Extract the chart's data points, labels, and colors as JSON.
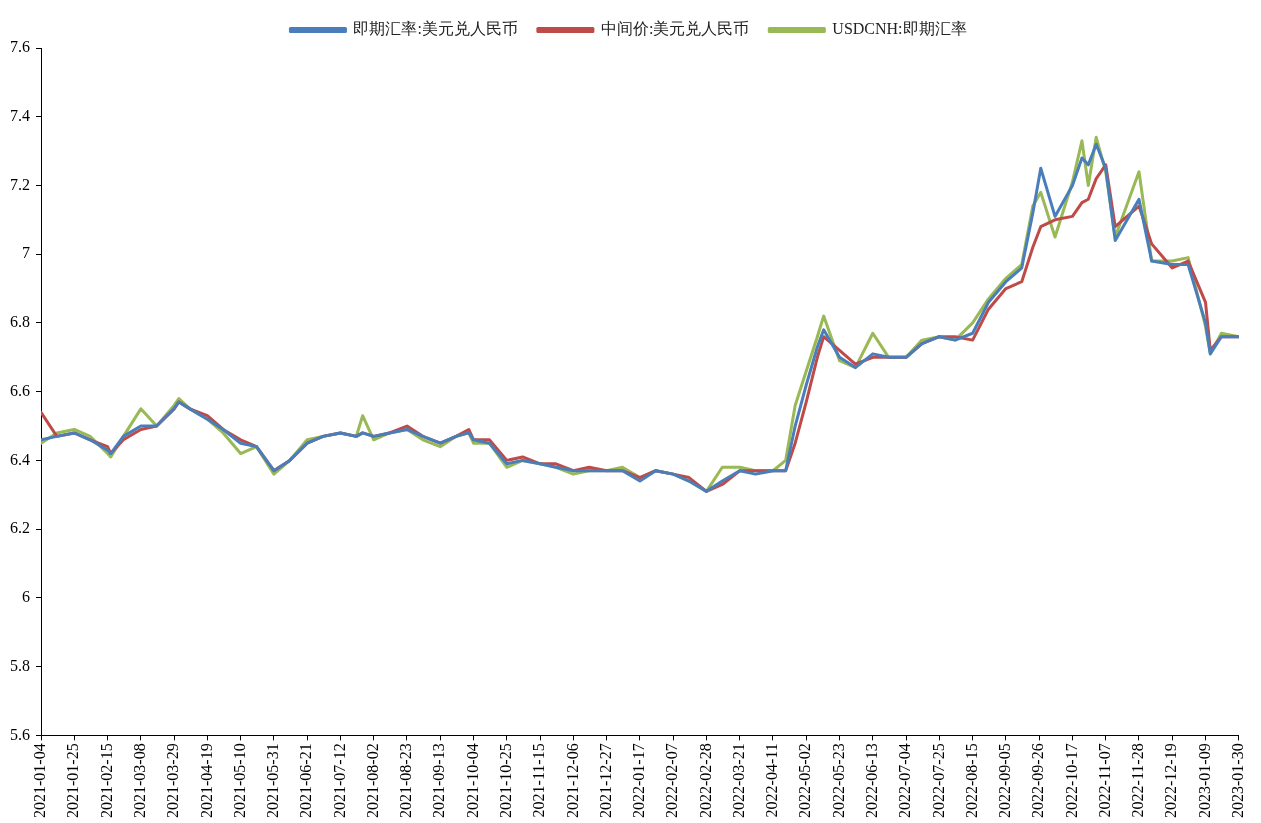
{
  "chart_data": {
    "type": "line",
    "x": [
      "2021-01-04",
      "2021-01-14",
      "2021-01-25",
      "2021-02-04",
      "2021-02-15",
      "2021-02-17",
      "2021-02-25",
      "2021-03-08",
      "2021-03-18",
      "2021-03-29",
      "2021-04-01",
      "2021-04-08",
      "2021-04-19",
      "2021-04-29",
      "2021-05-10",
      "2021-05-20",
      "2021-05-31",
      "2021-06-10",
      "2021-06-21",
      "2021-07-01",
      "2021-07-12",
      "2021-07-22",
      "2021-07-26",
      "2021-08-02",
      "2021-08-12",
      "2021-08-23",
      "2021-09-02",
      "2021-09-13",
      "2021-09-23",
      "2021-10-01",
      "2021-10-04",
      "2021-10-14",
      "2021-10-25",
      "2021-11-04",
      "2021-11-15",
      "2021-11-25",
      "2021-12-06",
      "2021-12-16",
      "2021-12-27",
      "2022-01-06",
      "2022-01-17",
      "2022-01-27",
      "2022-02-07",
      "2022-02-17",
      "2022-02-28",
      "2022-03-10",
      "2022-03-21",
      "2022-03-31",
      "2022-04-11",
      "2022-04-19",
      "2022-04-25",
      "2022-05-02",
      "2022-05-09",
      "2022-05-13",
      "2022-05-23",
      "2022-06-02",
      "2022-06-13",
      "2022-06-23",
      "2022-07-04",
      "2022-07-14",
      "2022-07-25",
      "2022-08-04",
      "2022-08-15",
      "2022-08-25",
      "2022-09-05",
      "2022-09-15",
      "2022-09-22",
      "2022-09-27",
      "2022-10-06",
      "2022-10-17",
      "2022-10-23",
      "2022-10-27",
      "2022-11-01",
      "2022-11-07",
      "2022-11-13",
      "2022-11-28",
      "2022-12-06",
      "2022-12-19",
      "2022-12-29",
      "2023-01-09",
      "2023-01-12",
      "2023-01-19",
      "2023-01-30"
    ],
    "series": [
      {
        "name": "即期汇率:美元兑人民币",
        "color": "#4a7ebb",
        "values": [
          6.46,
          6.47,
          6.48,
          6.46,
          6.43,
          6.42,
          6.47,
          6.5,
          6.5,
          6.55,
          6.57,
          6.55,
          6.52,
          6.49,
          6.45,
          6.44,
          6.37,
          6.4,
          6.45,
          6.47,
          6.48,
          6.47,
          6.48,
          6.47,
          6.48,
          6.49,
          6.47,
          6.45,
          6.47,
          6.48,
          6.46,
          6.45,
          6.39,
          6.4,
          6.39,
          6.38,
          6.37,
          6.37,
          6.37,
          6.37,
          6.34,
          6.37,
          6.36,
          6.34,
          6.31,
          6.34,
          6.37,
          6.36,
          6.37,
          6.37,
          6.5,
          6.62,
          6.73,
          6.78,
          6.7,
          6.67,
          6.71,
          6.7,
          6.7,
          6.74,
          6.76,
          6.75,
          6.77,
          6.86,
          6.92,
          6.96,
          7.12,
          7.25,
          7.11,
          7.2,
          7.28,
          7.26,
          7.32,
          7.25,
          7.04,
          7.16,
          6.98,
          6.97,
          6.97,
          6.8,
          6.71,
          6.76,
          6.76
        ]
      },
      {
        "name": "中间价:美元兑人民币",
        "color": "#be4b48",
        "values": [
          6.54,
          6.47,
          6.48,
          6.46,
          6.44,
          6.42,
          6.46,
          6.49,
          6.5,
          6.55,
          6.57,
          6.55,
          6.53,
          6.49,
          6.46,
          6.44,
          6.37,
          6.4,
          6.45,
          6.47,
          6.48,
          6.47,
          6.48,
          6.47,
          6.48,
          6.5,
          6.47,
          6.45,
          6.47,
          6.49,
          6.46,
          6.46,
          6.4,
          6.41,
          6.39,
          6.39,
          6.37,
          6.38,
          6.37,
          6.37,
          6.35,
          6.37,
          6.36,
          6.35,
          6.31,
          6.33,
          6.37,
          6.37,
          6.37,
          6.37,
          6.45,
          6.57,
          6.7,
          6.76,
          6.72,
          6.68,
          6.7,
          6.7,
          6.7,
          6.74,
          6.76,
          6.76,
          6.75,
          6.84,
          6.9,
          6.92,
          7.02,
          7.08,
          7.1,
          7.11,
          7.15,
          7.16,
          7.22,
          7.26,
          7.08,
          7.14,
          7.03,
          6.96,
          6.98,
          6.86,
          6.72,
          6.76,
          6.76
        ]
      },
      {
        "name": "USDCNH:即期汇率",
        "color": "#98b954",
        "values": [
          6.45,
          6.48,
          6.49,
          6.47,
          6.42,
          6.41,
          6.47,
          6.55,
          6.5,
          6.56,
          6.58,
          6.55,
          6.52,
          6.48,
          6.42,
          6.44,
          6.36,
          6.4,
          6.46,
          6.47,
          6.48,
          6.47,
          6.53,
          6.46,
          6.48,
          6.49,
          6.46,
          6.44,
          6.47,
          6.48,
          6.45,
          6.45,
          6.38,
          6.4,
          6.39,
          6.38,
          6.36,
          6.37,
          6.37,
          6.38,
          6.35,
          6.37,
          6.36,
          6.34,
          6.31,
          6.38,
          6.38,
          6.37,
          6.37,
          6.4,
          6.56,
          6.66,
          6.76,
          6.82,
          6.69,
          6.67,
          6.77,
          6.7,
          6.7,
          6.75,
          6.76,
          6.75,
          6.8,
          6.87,
          6.93,
          6.97,
          7.14,
          7.18,
          7.05,
          7.21,
          7.33,
          7.2,
          7.34,
          7.24,
          7.05,
          7.24,
          6.98,
          6.98,
          6.99,
          6.79,
          6.71,
          6.77,
          6.76
        ]
      }
    ],
    "xlim": [
      "2021-01-04",
      "2023-01-30"
    ],
    "xticks": [
      "2021-01-04",
      "2021-01-25",
      "2021-02-15",
      "2021-03-08",
      "2021-03-29",
      "2021-04-19",
      "2021-05-10",
      "2021-05-31",
      "2021-06-21",
      "2021-07-12",
      "2021-08-02",
      "2021-08-23",
      "2021-09-13",
      "2021-10-04",
      "2021-10-25",
      "2021-11-15",
      "2021-12-06",
      "2021-12-27",
      "2022-01-17",
      "2022-02-07",
      "2022-02-28",
      "2022-03-21",
      "2022-04-11",
      "2022-05-02",
      "2022-05-23",
      "2022-06-13",
      "2022-07-04",
      "2022-07-25",
      "2022-08-15",
      "2022-09-05",
      "2022-09-26",
      "2022-10-17",
      "2022-11-07",
      "2022-11-28",
      "2022-12-19",
      "2023-01-09",
      "2023-01-30"
    ],
    "ylim": [
      5.6,
      7.6
    ],
    "yticks": [
      5.6,
      5.8,
      6,
      6.2,
      6.4,
      6.6,
      6.8,
      7,
      7.2,
      7.4,
      7.6
    ],
    "grid": false,
    "legend": "top",
    "marker": "none",
    "line_style": "solid"
  }
}
